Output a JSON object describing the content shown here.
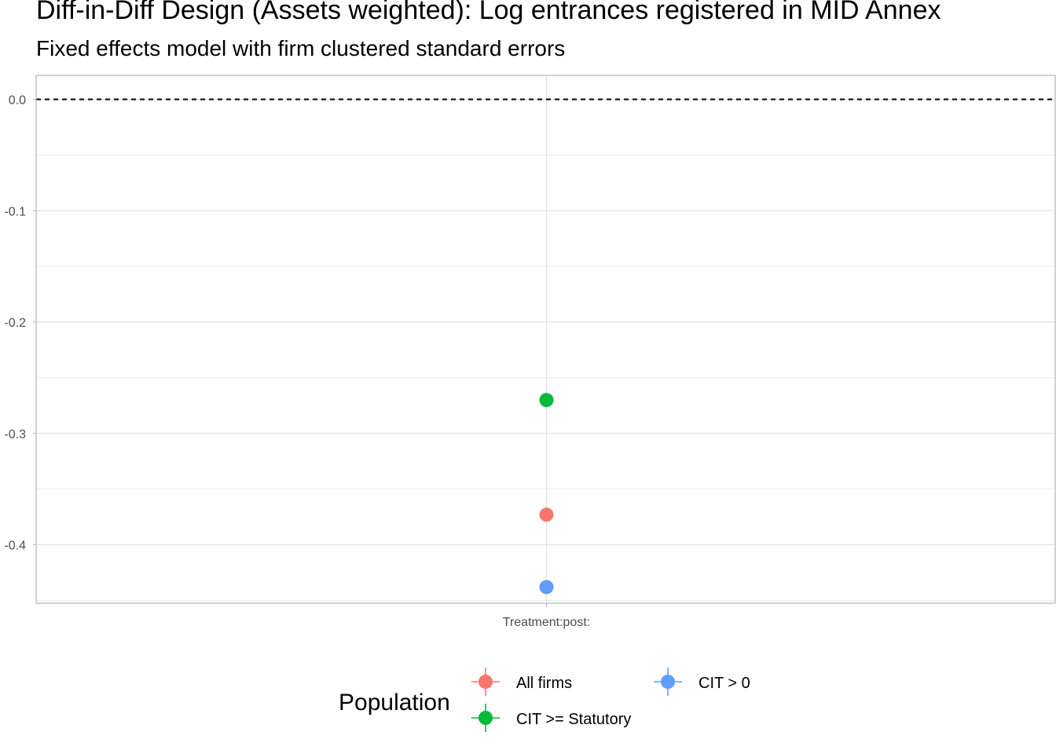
{
  "chart_data": {
    "type": "scatter",
    "title": "Diff-in-Diff Design (Assets weighted): Log entrances registered in MID Annex",
    "subtitle": "Fixed effects model with firm clustered standard errors",
    "xlabel": "",
    "ylabel": "",
    "categories": [
      "Treatment:post:"
    ],
    "ylim": [
      -0.4525,
      0.0215
    ],
    "y_ticks": [
      0.0,
      -0.1,
      -0.2,
      -0.3,
      -0.4
    ],
    "y_tick_labels": [
      "0.0",
      "-0.1",
      "-0.2",
      "-0.3",
      "-0.4"
    ],
    "reference_line": 0.0,
    "reference_line_style": "dashed",
    "grid": true,
    "legend_title": "Population",
    "legend_position": "bottom",
    "series": [
      {
        "name": "All firms",
        "color": "#F8766D",
        "values": [
          -0.373
        ]
      },
      {
        "name": "CIT > 0",
        "color": "#619CFF",
        "values": [
          -0.438
        ]
      },
      {
        "name": "CIT >= Statutory",
        "color": "#00BA38",
        "values": [
          -0.27
        ]
      }
    ]
  }
}
